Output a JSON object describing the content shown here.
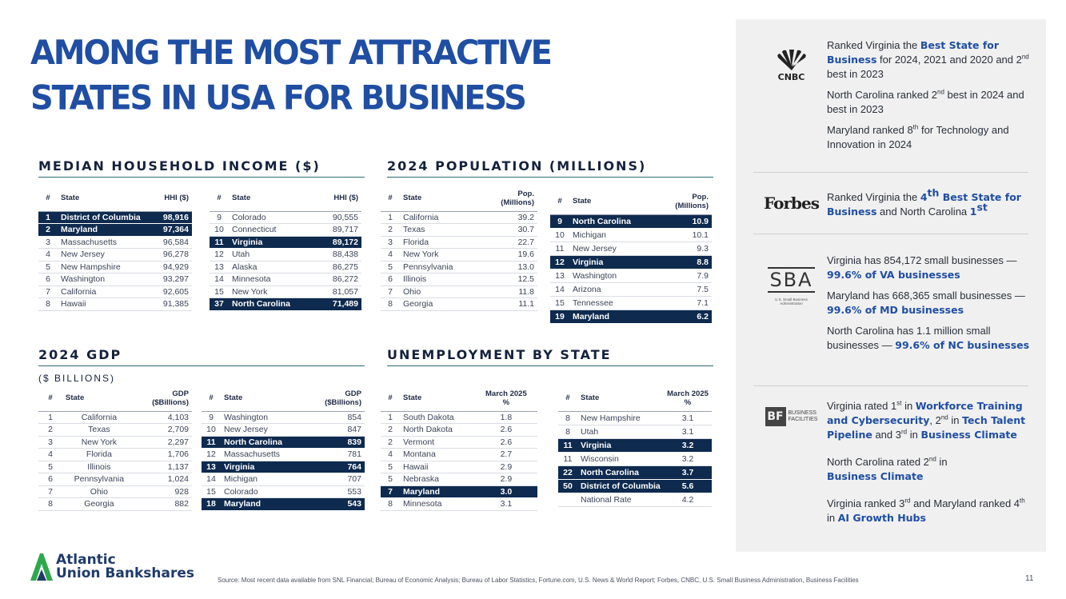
{
  "title": {
    "line1": "AMONG THE MOST ATTRACTIVE",
    "line2": "STATES IN USA FOR BUSINESS"
  },
  "income": {
    "heading": "MEDIAN HOUSEHOLD INCOME ($)",
    "headers": [
      "#",
      "State",
      "HHI ($)"
    ],
    "left": [
      {
        "rank": "1",
        "state": "District of Columbia",
        "value": "98,916",
        "hl": true
      },
      {
        "rank": "2",
        "state": "Maryland",
        "value": "97,364",
        "hl": true
      },
      {
        "rank": "3",
        "state": "Massachusetts",
        "value": "96,584"
      },
      {
        "rank": "4",
        "state": "New Jersey",
        "value": "96,278"
      },
      {
        "rank": "5",
        "state": "New Hampshire",
        "value": "94,929"
      },
      {
        "rank": "6",
        "state": "Washington",
        "value": "93,297"
      },
      {
        "rank": "7",
        "state": "California",
        "value": "92,605"
      },
      {
        "rank": "8",
        "state": "Hawaii",
        "value": "91,385"
      }
    ],
    "right": [
      {
        "rank": "9",
        "state": "Colorado",
        "value": "90,555"
      },
      {
        "rank": "10",
        "state": "Connecticut",
        "value": "89,717"
      },
      {
        "rank": "11",
        "state": "Virginia",
        "value": "89,172",
        "hl": true
      },
      {
        "rank": "12",
        "state": "Utah",
        "value": "88,438"
      },
      {
        "rank": "13",
        "state": "Alaska",
        "value": "86,275"
      },
      {
        "rank": "14",
        "state": "Minnesota",
        "value": "86,272"
      },
      {
        "rank": "15",
        "state": "New York",
        "value": "81,057"
      },
      {
        "rank": "37",
        "state": "North Carolina",
        "value": "71,489",
        "hl": true
      }
    ]
  },
  "population": {
    "heading": "2024 POPULATION (MILLIONS)",
    "headers": [
      "#",
      "State",
      "Pop.",
      "(Millions)"
    ],
    "left": [
      {
        "rank": "1",
        "state": "California",
        "value": "39.2"
      },
      {
        "rank": "2",
        "state": "Texas",
        "value": "30.7"
      },
      {
        "rank": "3",
        "state": "Florida",
        "value": "22.7"
      },
      {
        "rank": "4",
        "state": "New York",
        "value": "19.6"
      },
      {
        "rank": "5",
        "state": "Pennsylvania",
        "value": "13.0"
      },
      {
        "rank": "6",
        "state": "Illinois",
        "value": "12.5"
      },
      {
        "rank": "7",
        "state": "Ohio",
        "value": "11.8"
      },
      {
        "rank": "8",
        "state": "Georgia",
        "value": "11.1"
      }
    ],
    "right": [
      {
        "rank": "9",
        "state": "North Carolina",
        "value": "10.9",
        "hl": true
      },
      {
        "rank": "10",
        "state": "Michigan",
        "value": "10.1"
      },
      {
        "rank": "11",
        "state": "New Jersey",
        "value": "9.3"
      },
      {
        "rank": "12",
        "state": "Virginia",
        "value": "8.8",
        "hl": true
      },
      {
        "rank": "13",
        "state": "Washington",
        "value": "7.9"
      },
      {
        "rank": "14",
        "state": "Arizona",
        "value": "7.5"
      },
      {
        "rank": "15",
        "state": "Tennessee",
        "value": "7.1"
      },
      {
        "rank": "19",
        "state": "Maryland",
        "value": "6.2",
        "hl": true
      }
    ]
  },
  "gdp": {
    "heading": "2024 GDP",
    "subheading": "($ BILLIONS)",
    "headers": [
      "#",
      "State",
      "GDP",
      "($Billions)"
    ],
    "left": [
      {
        "rank": "1",
        "state": "California",
        "value": "4,103"
      },
      {
        "rank": "2",
        "state": "Texas",
        "value": "2,709"
      },
      {
        "rank": "3",
        "state": "New York",
        "value": "2,297"
      },
      {
        "rank": "4",
        "state": "Florida",
        "value": "1,706"
      },
      {
        "rank": "5",
        "state": "Illinois",
        "value": "1,137"
      },
      {
        "rank": "6",
        "state": "Pennsylvania",
        "value": "1,024"
      },
      {
        "rank": "7",
        "state": "Ohio",
        "value": "928"
      },
      {
        "rank": "8",
        "state": "Georgia",
        "value": "882"
      }
    ],
    "right": [
      {
        "rank": "9",
        "state": "Washington",
        "value": "854"
      },
      {
        "rank": "10",
        "state": "New Jersey",
        "value": "847"
      },
      {
        "rank": "11",
        "state": "North Carolina",
        "value": "839",
        "hl": true
      },
      {
        "rank": "12",
        "state": "Massachusetts",
        "value": "781"
      },
      {
        "rank": "13",
        "state": "Virginia",
        "value": "764",
        "hl": true
      },
      {
        "rank": "14",
        "state": "Michigan",
        "value": "707"
      },
      {
        "rank": "15",
        "state": "Colorado",
        "value": "553"
      },
      {
        "rank": "18",
        "state": "Maryland",
        "value": "543",
        "hl": true
      }
    ]
  },
  "unemployment": {
    "heading": "UNEMPLOYMENT BY STATE",
    "headers": [
      "#",
      "State",
      "March 2025",
      "%"
    ],
    "left": [
      {
        "rank": "1",
        "state": "South Dakota",
        "value": "1.8"
      },
      {
        "rank": "2",
        "state": "North Dakota",
        "value": "2.6"
      },
      {
        "rank": "2",
        "state": "Vermont",
        "value": "2.6"
      },
      {
        "rank": "4",
        "state": "Montana",
        "value": "2.7"
      },
      {
        "rank": "5",
        "state": "Hawaii",
        "value": "2.9"
      },
      {
        "rank": "5",
        "state": "Nebraska",
        "value": "2.9"
      },
      {
        "rank": "7",
        "state": "Maryland",
        "value": "3.0",
        "hl": true
      },
      {
        "rank": "8",
        "state": "Minnesota",
        "value": "3.1"
      }
    ],
    "right": [
      {
        "rank": "8",
        "state": "New Hampshire",
        "value": "3.1"
      },
      {
        "rank": "8",
        "state": "Utah",
        "value": "3.1"
      },
      {
        "rank": "11",
        "state": "Virginia",
        "value": "3.2",
        "hl": true
      },
      {
        "rank": "11",
        "state": "Wisconsin",
        "value": "3.2"
      },
      {
        "rank": "22",
        "state": "North Carolina",
        "value": "3.7",
        "hl": true
      },
      {
        "rank": "50",
        "state": "District of Columbia",
        "value": "5.6",
        "hl": true
      },
      {
        "rank": "",
        "state": "National Rate",
        "value": "4.2"
      }
    ]
  },
  "panel": {
    "cnbc": {
      "logo_text": "CNBC",
      "p1a": "Ranked Virginia the ",
      "p1b": "Best State for Business",
      "p1c": " for 2024, 2021 and 2020 and 2",
      "p1d": "nd",
      "p1e": " best in 2023",
      "p2a": "North Carolina ranked 2",
      "p2b": "nd",
      "p2c": " best in 2024 and best in 2023",
      "p3a": "Maryland ranked 8",
      "p3b": "th",
      "p3c": " for Technology and Innovation in 2024"
    },
    "forbes": {
      "logo_text": "Forbes",
      "p1a": "Ranked Virginia the ",
      "p1b": "4",
      "p1c": "th",
      "p1d": " Best State for Business",
      "p1e": " and North Carolina ",
      "p1f": "1",
      "p1g": "st"
    },
    "sba": {
      "logo_text": "SBA",
      "logo_sub": "U.S. Small Business Administration",
      "p1a": "Virginia has 854,172 small businesses — ",
      "p1b": "99.6% of VA businesses",
      "p2a": "Maryland has 668,365 small businesses — ",
      "p2b": "99.6% of MD businesses",
      "p3a": "North Carolina has 1.1 million small businesses — ",
      "p3b": "99.6% of NC businesses"
    },
    "bf": {
      "logo_text": "BF",
      "logo_word1": "BUSINESS",
      "logo_word2": "FACILITIES",
      "p1a": "Virginia rated 1",
      "p1b": "st",
      "p1c": " in ",
      "p1d": "Workforce Training and Cybersecurity",
      "p1e": ", 2",
      "p1f": "nd",
      "p1g": " in ",
      "p1h": "Tech Talent Pipeline",
      "p1i": " and 3",
      "p1j": "rd",
      "p1k": " in ",
      "p1l": "Business Climate",
      "p2a": "North Carolina rated 2",
      "p2b": "nd",
      "p2c": " in ",
      "p2d": "Business Climate",
      "p3a": "Virginia ranked 3",
      "p3b": "rd",
      "p3c": " and Maryland ranked 4",
      "p3d": "th",
      "p3e": " in ",
      "p3f": "AI Growth Hubs"
    }
  },
  "footer": {
    "brand_line1": "Atlantic",
    "brand_line2": "Union Bankshares",
    "source": "Source: Most recent data available from SNL Financial; Bureau of Economic Analysis; Bureau of Labor Statistics, Fortune.com, U.S. News & World Report; Forbes, CNBC, U.S. Small Business Administration, Business Facilities",
    "page_number": "11"
  },
  "colors": {
    "navy_highlight": "#0e2a4e",
    "title_blue": "#1f4ea3",
    "panel_bg": "#f0f0f0"
  }
}
